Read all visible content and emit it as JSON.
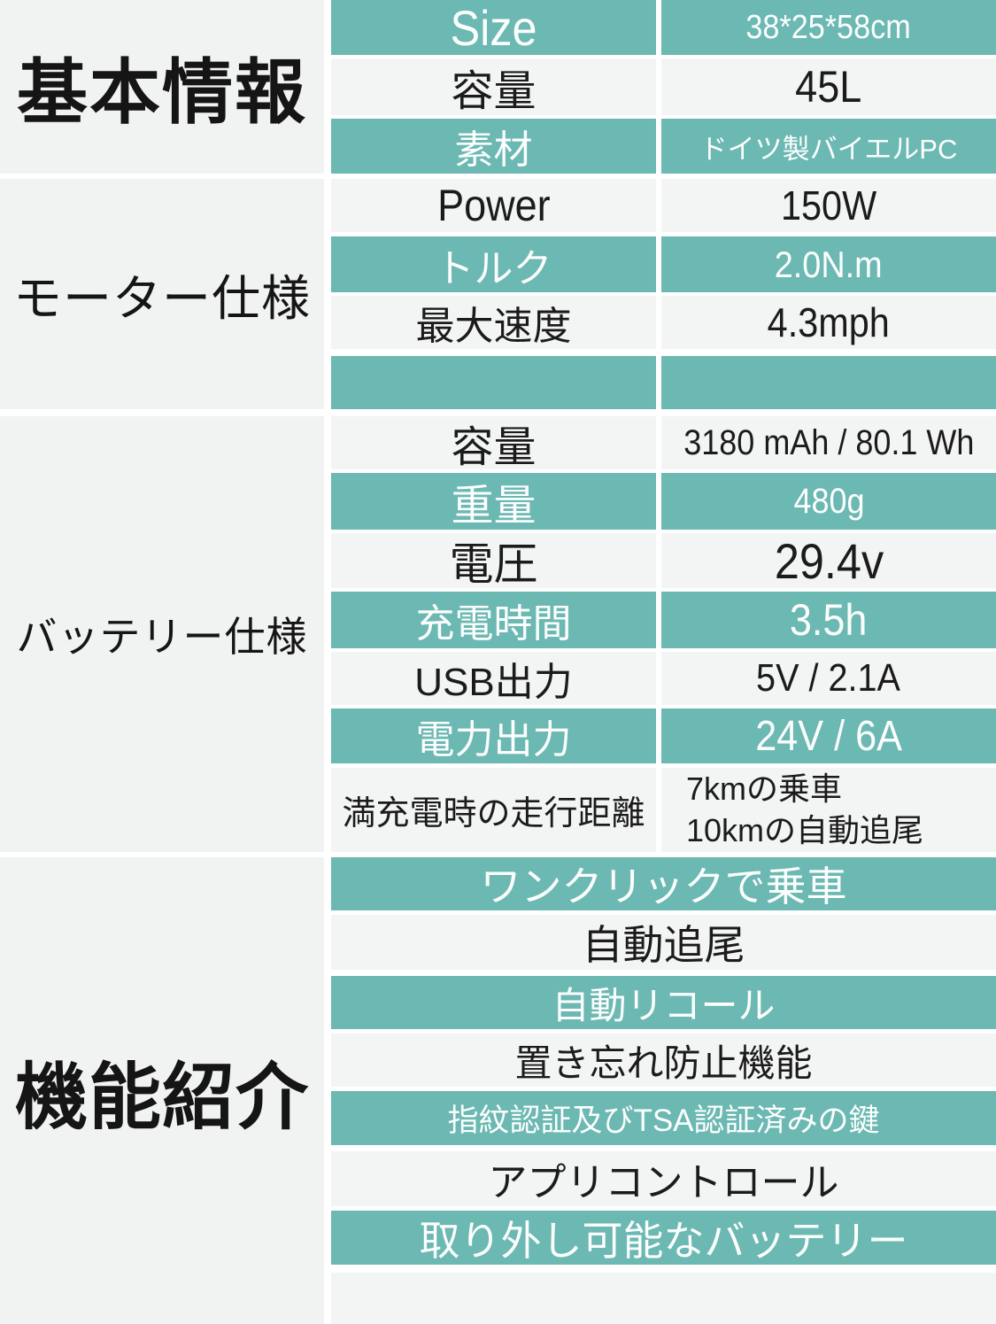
{
  "colors": {
    "accent_teal": "#6CB8B2",
    "row_light": "#F3F4F4",
    "panel_gray": "#F1F2F2",
    "divider_white": "#FFFFFF",
    "text_dark": "#1B1B1B",
    "text_light": "#FCFEFE"
  },
  "sections": [
    {
      "title": "基本情報",
      "rows": [
        {
          "label": "Size",
          "value": "38*25*58cm"
        },
        {
          "label": "容量",
          "value": "45L"
        },
        {
          "label": "素材",
          "value": "ドイツ製バイエルPC"
        }
      ]
    },
    {
      "title": "モーター仕様",
      "rows": [
        {
          "label": "Power",
          "value": "150W"
        },
        {
          "label": "トルク",
          "value": "2.0N.m"
        },
        {
          "label": "最大速度",
          "value": "4.3mph"
        },
        {
          "label": "",
          "value": ""
        }
      ]
    },
    {
      "title": "バッテリー仕様",
      "rows": [
        {
          "label": "容量",
          "value": "3180 mAh / 80.1 Wh"
        },
        {
          "label": "重量",
          "value": "480g"
        },
        {
          "label": "電圧",
          "value": "29.4v"
        },
        {
          "label": "充電時間",
          "value": "3.5h"
        },
        {
          "label": "USB出力",
          "value": "5V / 2.1A"
        },
        {
          "label": "電力出力",
          "value": "24V / 6A"
        },
        {
          "label": "満充電時の走行距離",
          "value_line1": "7kmの乗車",
          "value_line2": "10kmの自動追尾"
        }
      ]
    },
    {
      "title": "機能紹介",
      "features": [
        "ワンクリックで乗車",
        "自動追尾",
        "自動リコール",
        "置き忘れ防止機能",
        "指紋認証及びTSA認証済みの鍵",
        "アプリコントロール",
        "取り外し可能なバッテリー"
      ]
    }
  ]
}
